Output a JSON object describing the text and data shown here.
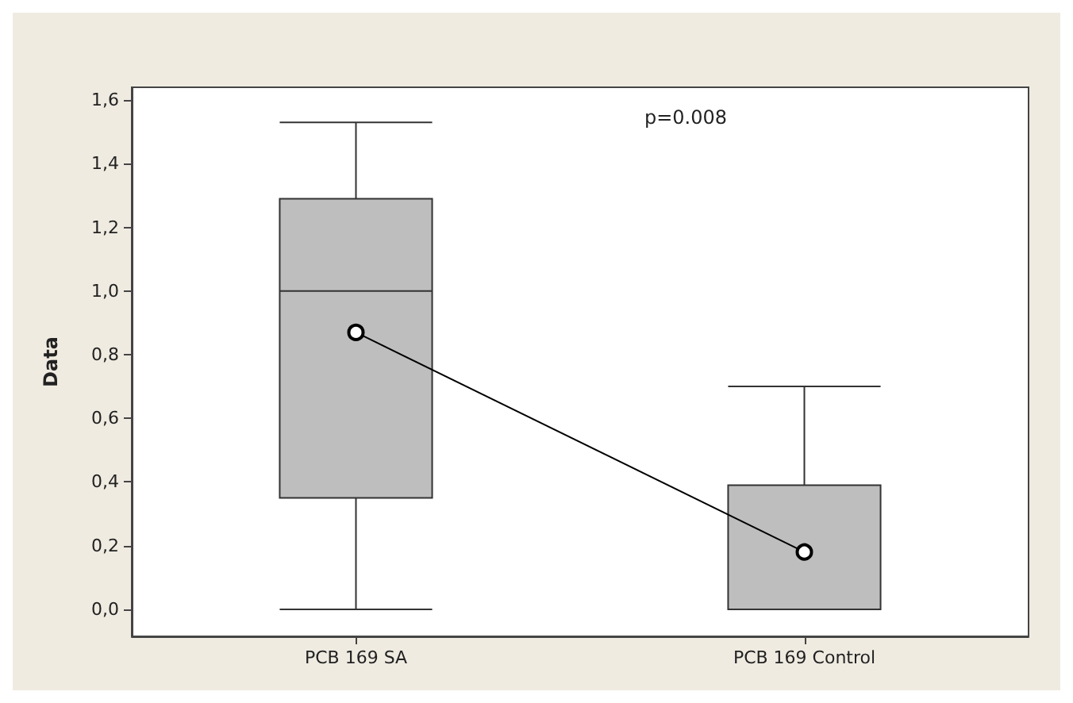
{
  "chart_data": {
    "type": "box",
    "ylabel": "Data",
    "categories": [
      "PCB 169 SA",
      "PCB 169 Control"
    ],
    "series": [
      {
        "color": "#bebebe",
        "boxes": [
          {
            "low": 0,
            "q1": 0.35,
            "median": 1.0,
            "q3": 1.29,
            "high": 1.53
          },
          {
            "low": 0,
            "q1": 0,
            "median": 0,
            "q3": 0.39,
            "high": 0.7
          }
        ]
      },
      {
        "type": "line",
        "color": "#000000",
        "values": [
          0.87,
          0.18
        ]
      }
    ],
    "marker": "circle",
    "ylim": [
      -0.085,
      1.64
    ],
    "yticks": [
      {
        "value": 0,
        "label": "0,0"
      },
      {
        "value": 0.2,
        "label": "0,2"
      },
      {
        "value": 0.4,
        "label": "0,4"
      },
      {
        "value": 0.6,
        "label": "0,6"
      },
      {
        "value": 0.8,
        "label": "0,8"
      },
      {
        "value": 1.0,
        "label": "1,0"
      },
      {
        "value": 1.2,
        "label": "1,2"
      },
      {
        "value": 1.4,
        "label": "1,4"
      },
      {
        "value": 1.6,
        "label": "1,6"
      }
    ],
    "annotations": [
      "p=0.008"
    ],
    "grid": false
  }
}
